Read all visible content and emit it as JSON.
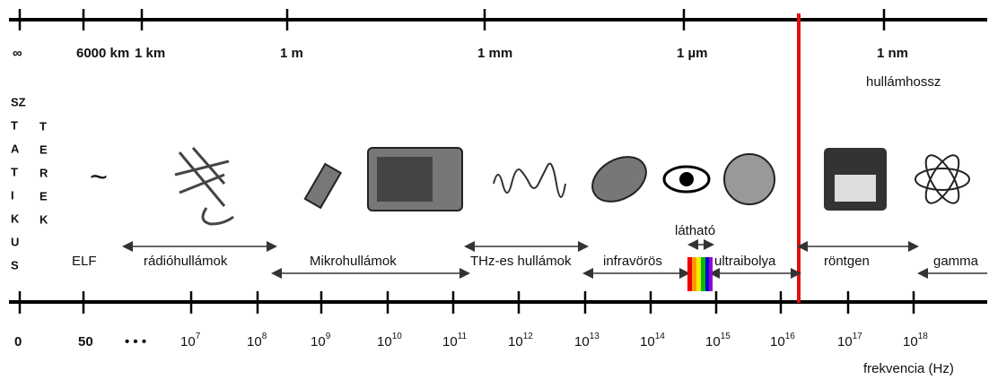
{
  "wavelength_axis": {
    "labels": [
      "∞",
      "6000 km",
      "1 km",
      "1 m",
      "1 mm",
      "1 µm",
      "1 nm"
    ],
    "title": "hullámhossz"
  },
  "static_fields": {
    "col1": [
      "SZ",
      "T",
      "A",
      "T",
      "I",
      "K",
      "U",
      "S"
    ],
    "col2": [
      "T",
      "E",
      "R",
      "E",
      "K"
    ]
  },
  "bands": {
    "elf": "ELF",
    "radio": "rádióhullámok",
    "micro": "Mikrohullámok",
    "thz": "THz-es hullámok",
    "infrared": "infravörös",
    "visible": "látható",
    "uv": "ultraibolya",
    "xray": "röntgen",
    "gamma": "gamma"
  },
  "frequency_axis": {
    "labels": [
      "0",
      "50",
      "• • •"
    ],
    "power_base": "10",
    "exponents": [
      "7",
      "8",
      "9",
      "10",
      "11",
      "12",
      "13",
      "14",
      "15",
      "16",
      "17",
      "18"
    ],
    "title": "frekvencia (Hz)"
  }
}
